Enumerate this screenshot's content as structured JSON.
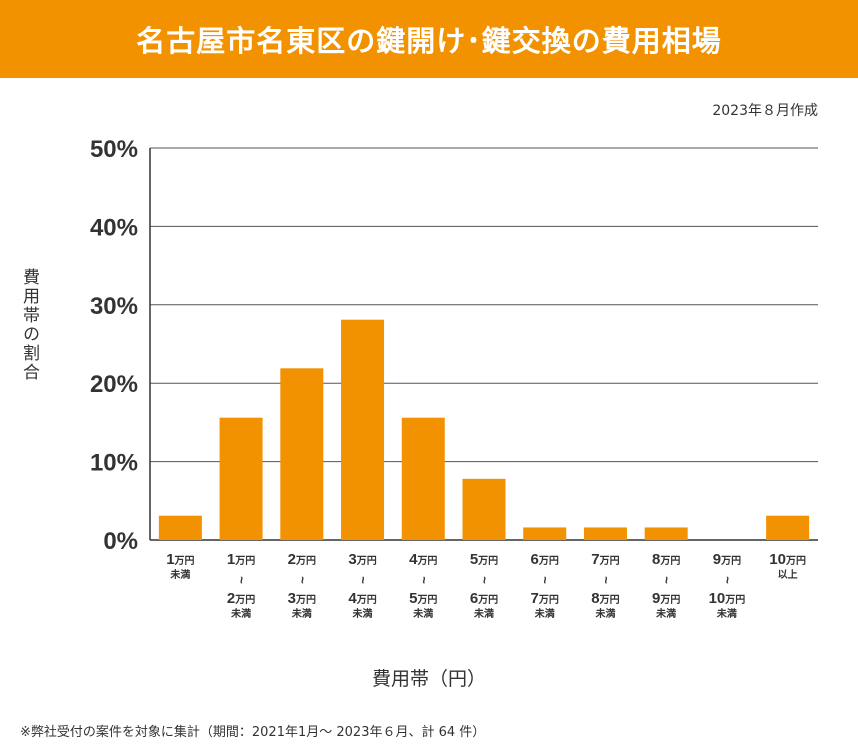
{
  "title": "名古屋市名東区の鍵開け･鍵交換の費用相場",
  "date_note": "2023年８月作成",
  "footnote": "※弊社受付の案件を対象に集計（期間：2021年1月～ 2023年６月、計 64 件）",
  "colors": {
    "banner": "#f39200",
    "bar": "#f39200",
    "grid": "#555555"
  },
  "chart_data": {
    "type": "bar",
    "title": "",
    "xlabel": "費用帯（円）",
    "ylabel": "費用帯の割合",
    "ylim": [
      0,
      50
    ],
    "yticks": [
      "0%",
      "10%",
      "20%",
      "30%",
      "40%",
      "50%"
    ],
    "grid": true,
    "categories": [
      {
        "top": "1",
        "unit": "万円",
        "tilde": false,
        "bottom": "",
        "suffix": "未満"
      },
      {
        "top": "1",
        "unit": "万円",
        "tilde": true,
        "bottom": "2",
        "suffix": "未満"
      },
      {
        "top": "2",
        "unit": "万円",
        "tilde": true,
        "bottom": "3",
        "suffix": "未満"
      },
      {
        "top": "3",
        "unit": "万円",
        "tilde": true,
        "bottom": "4",
        "suffix": "未満"
      },
      {
        "top": "4",
        "unit": "万円",
        "tilde": true,
        "bottom": "5",
        "suffix": "未満"
      },
      {
        "top": "5",
        "unit": "万円",
        "tilde": true,
        "bottom": "6",
        "suffix": "未満"
      },
      {
        "top": "6",
        "unit": "万円",
        "tilde": true,
        "bottom": "7",
        "suffix": "未満"
      },
      {
        "top": "7",
        "unit": "万円",
        "tilde": true,
        "bottom": "8",
        "suffix": "未満"
      },
      {
        "top": "8",
        "unit": "万円",
        "tilde": true,
        "bottom": "9",
        "suffix": "未満"
      },
      {
        "top": "9",
        "unit": "万円",
        "tilde": true,
        "bottom": "10",
        "suffix": "未満"
      },
      {
        "top": "10",
        "unit": "万円",
        "tilde": false,
        "bottom": "",
        "suffix": "以上"
      }
    ],
    "values": [
      3.1,
      15.6,
      21.9,
      28.1,
      15.6,
      7.8,
      1.6,
      1.6,
      1.6,
      0,
      3.1
    ]
  }
}
